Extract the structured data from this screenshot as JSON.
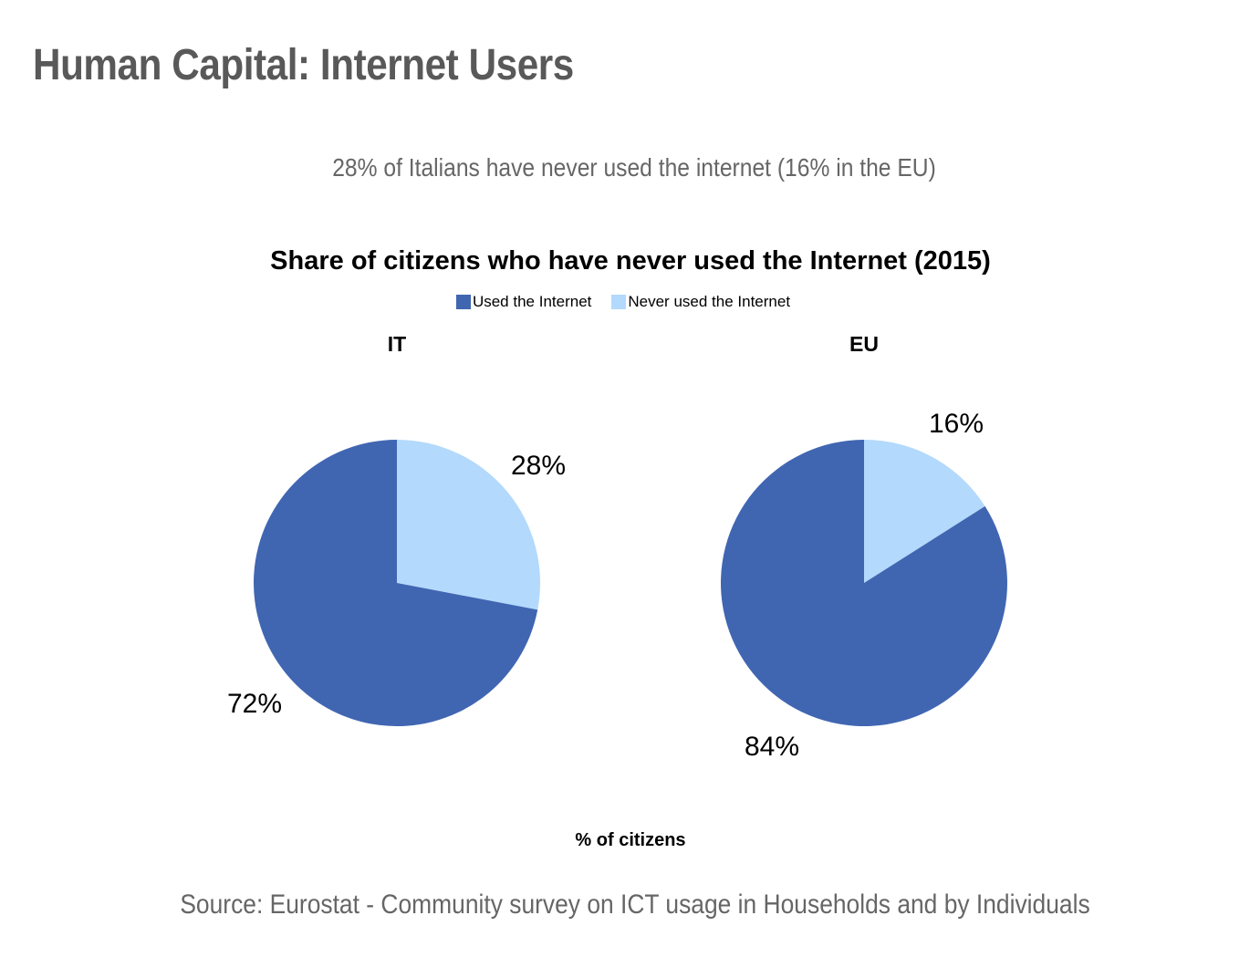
{
  "slide": {
    "title": "Human Capital: Internet Users",
    "subtitle": "28% of Italians have never used the internet (16% in the EU)",
    "source": "Source: Eurostat - Community survey on ICT usage in Households and by Individuals"
  },
  "chart_data": {
    "type": "pie",
    "title": "Share of citizens who have never used the Internet (2015)",
    "xlabel": "% of citizens",
    "legend_position": "top-center",
    "categories": [
      "Used the Internet",
      "Never used the Internet"
    ],
    "colors": [
      "#4066B2",
      "#B3D9FC"
    ],
    "series": [
      {
        "name": "IT",
        "values": [
          72,
          28
        ],
        "labels": [
          "72%",
          "28%"
        ]
      },
      {
        "name": "EU",
        "values": [
          84,
          16
        ],
        "labels": [
          "84%",
          "16%"
        ]
      }
    ]
  }
}
